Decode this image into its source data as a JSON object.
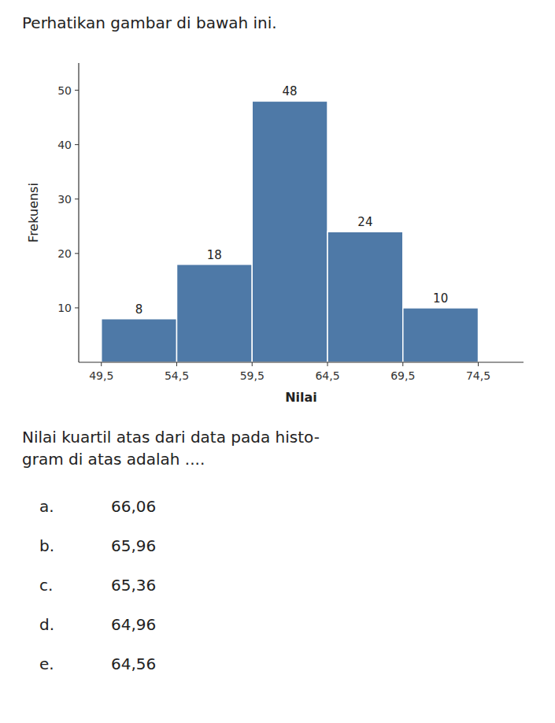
{
  "chart_data": {
    "type": "histogram",
    "title": "Perhatikan gambar di bawah ini.",
    "xlabel": "Nilai",
    "ylabel": "Frekuensi",
    "bins": [
      49.5,
      54.5,
      59.5,
      64.5,
      69.5,
      74.5
    ],
    "values": [
      8,
      18,
      48,
      24,
      10
    ],
    "data_labels": true,
    "grid": false,
    "xlim": [
      48,
      77.5
    ],
    "ylim": [
      0,
      55
    ],
    "xticks": [
      {
        "value": 49.5,
        "label": "49,5"
      },
      {
        "value": 54.5,
        "label": "54,5"
      },
      {
        "value": 59.5,
        "label": "59,5"
      },
      {
        "value": 64.5,
        "label": "64,5"
      },
      {
        "value": 69.5,
        "label": "69,5"
      },
      {
        "value": 74.5,
        "label": "74,5"
      }
    ],
    "yticks": [
      10,
      20,
      30,
      40,
      50
    ],
    "annotations": [
      "Nilai kuartil atas dari data pada histo-\ngram di atas adalah ....",
      "a.",
      "66,06",
      "b.",
      "65,96",
      "c.",
      "65,36",
      "d.",
      "64,96",
      "e.",
      "64,56"
    ]
  }
}
